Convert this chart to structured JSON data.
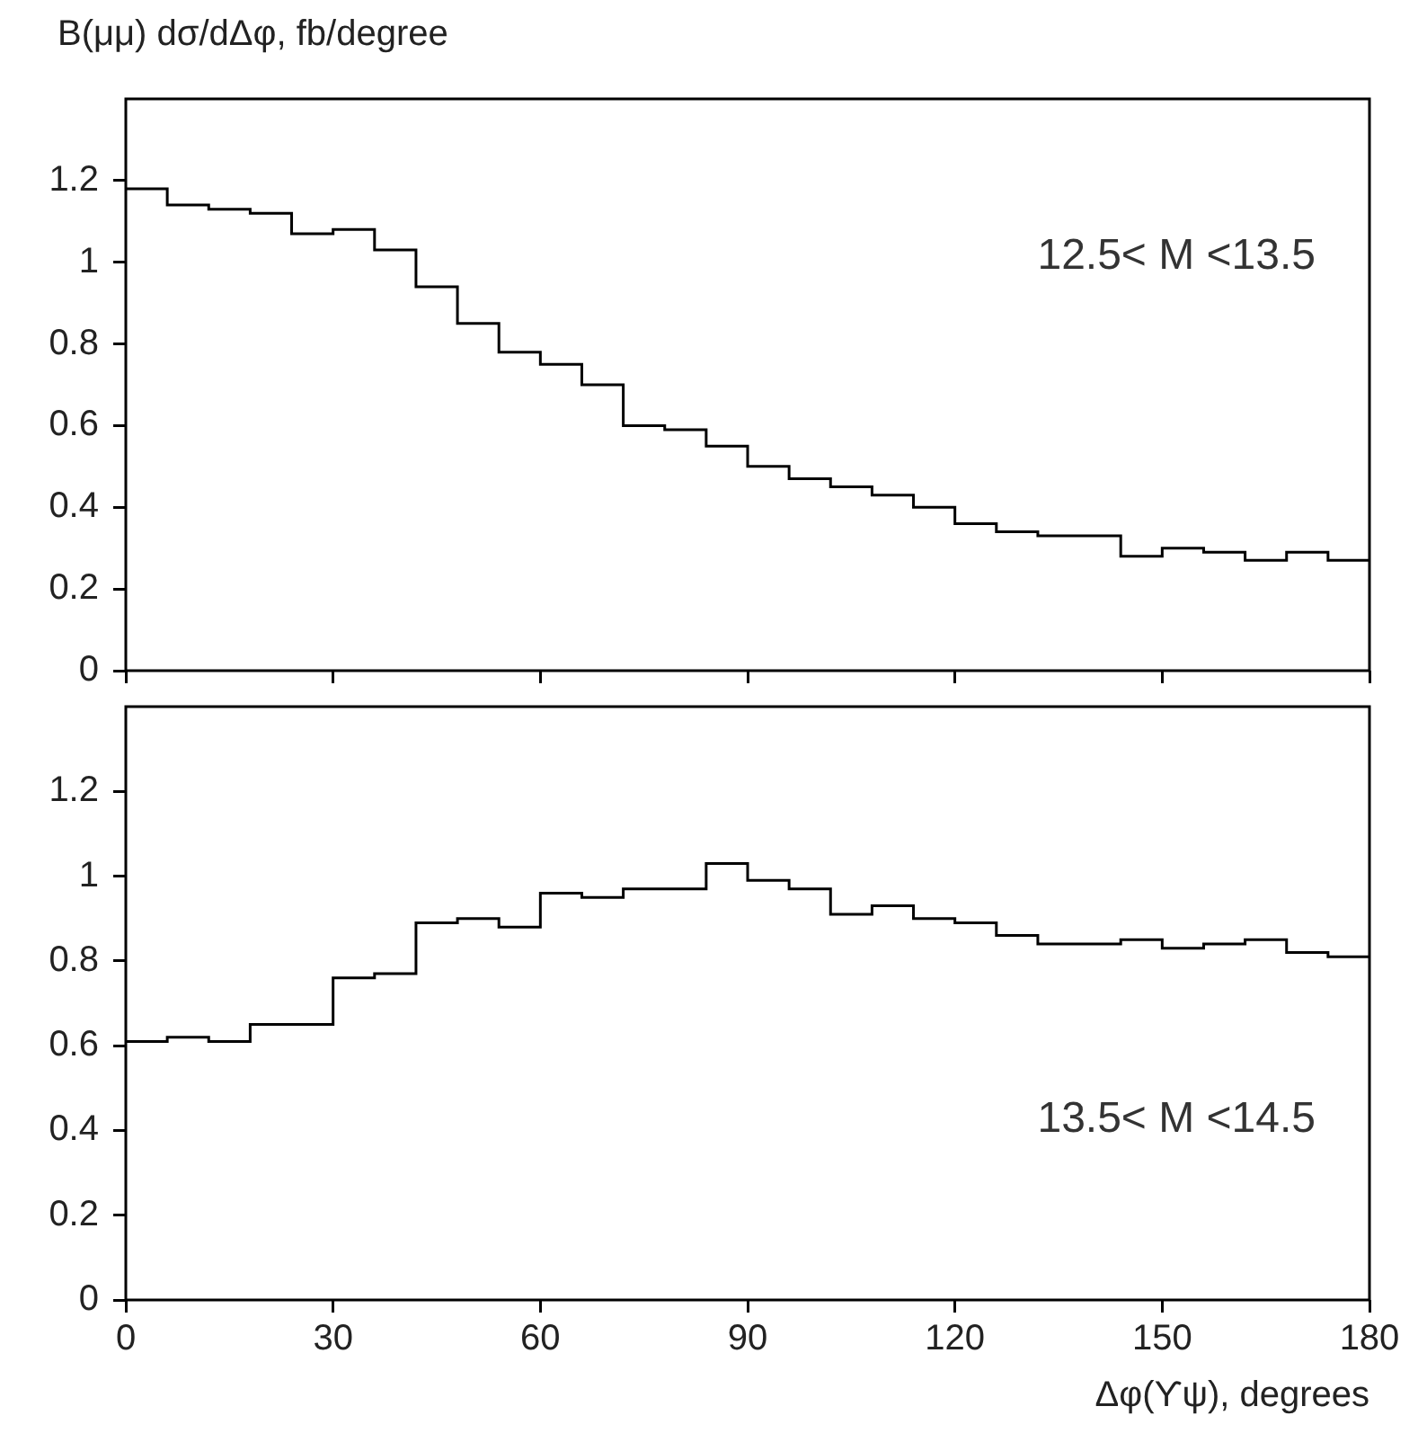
{
  "chart_data": [
    {
      "type": "histogram",
      "ylabel": "B(μμ) dσ/dΔφ, fb/degree",
      "annotations": [
        "12.5< M <13.5"
      ],
      "bins": [
        0,
        6,
        12,
        18,
        24,
        30,
        36,
        42,
        48,
        54,
        60,
        66,
        72,
        78,
        84,
        90,
        96,
        102,
        108,
        114,
        120,
        126,
        132,
        138,
        144,
        150,
        156,
        162,
        168,
        174,
        180
      ],
      "values": [
        1.18,
        1.14,
        1.13,
        1.12,
        1.07,
        1.08,
        1.03,
        0.94,
        0.85,
        0.78,
        0.75,
        0.7,
        0.6,
        0.59,
        0.55,
        0.5,
        0.47,
        0.45,
        0.43,
        0.4,
        0.36,
        0.34,
        0.33,
        0.33,
        0.28,
        0.3,
        0.29,
        0.27,
        0.29,
        0.27
      ],
      "color": "#000000",
      "xlim": [
        0,
        180
      ],
      "xticks": [
        0,
        30,
        60,
        90,
        120,
        150,
        180
      ],
      "ylim": [
        0,
        1.4
      ],
      "yticks": [
        0,
        0.2,
        0.4,
        0.6,
        0.8,
        1,
        1.2
      ],
      "tick_labels": "y"
    },
    {
      "type": "histogram",
      "xlabel": "Δφ(ϒψ), degrees",
      "annotations": [
        "13.5< M <14.5"
      ],
      "bins": [
        0,
        6,
        12,
        18,
        24,
        30,
        36,
        42,
        48,
        54,
        60,
        66,
        72,
        78,
        84,
        90,
        96,
        102,
        108,
        114,
        120,
        126,
        132,
        138,
        144,
        150,
        156,
        162,
        168,
        174,
        180
      ],
      "values": [
        0.61,
        0.62,
        0.61,
        0.65,
        0.65,
        0.76,
        0.77,
        0.89,
        0.9,
        0.88,
        0.96,
        0.95,
        0.97,
        0.97,
        1.03,
        0.99,
        0.97,
        0.91,
        0.93,
        0.9,
        0.89,
        0.86,
        0.84,
        0.84,
        0.85,
        0.83,
        0.84,
        0.85,
        0.82,
        0.81
      ],
      "color": "#000000",
      "xlim": [
        0,
        180
      ],
      "xticks": [
        0,
        30,
        60,
        90,
        120,
        150,
        180
      ],
      "ylim": [
        0,
        1.4
      ],
      "yticks": [
        0,
        0.2,
        0.4,
        0.6,
        0.8,
        1,
        1.2
      ]
    }
  ]
}
